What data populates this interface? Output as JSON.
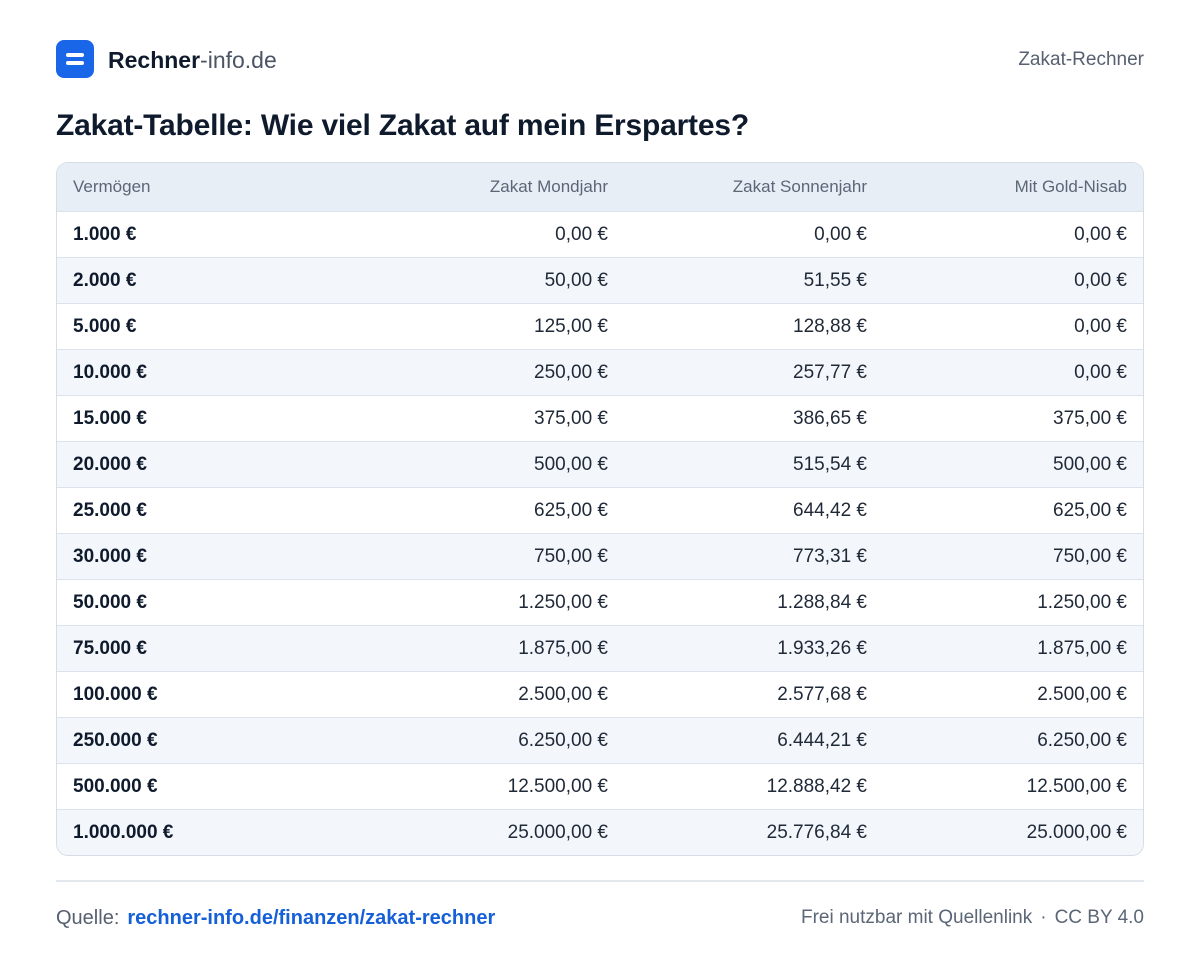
{
  "header": {
    "brand_bold": "Rechner",
    "brand_light": "-info.de",
    "nav_label": "Zakat-Rechner"
  },
  "title": "Zakat-Tabelle:  Wie viel Zakat auf mein Erspartes?",
  "table": {
    "columns": [
      "Vermögen",
      "Zakat Mondjahr",
      "Zakat Sonnenjahr",
      "Mit Gold-Nisab"
    ],
    "rows": [
      [
        "1.000 €",
        "0,00 €",
        "0,00 €",
        "0,00 €"
      ],
      [
        "2.000 €",
        "50,00 €",
        "51,55 €",
        "0,00 €"
      ],
      [
        "5.000 €",
        "125,00 €",
        "128,88 €",
        "0,00 €"
      ],
      [
        "10.000 €",
        "250,00 €",
        "257,77 €",
        "0,00 €"
      ],
      [
        "15.000 €",
        "375,00 €",
        "386,65 €",
        "375,00 €"
      ],
      [
        "20.000 €",
        "500,00 €",
        "515,54 €",
        "500,00 €"
      ],
      [
        "25.000 €",
        "625,00 €",
        "644,42 €",
        "625,00 €"
      ],
      [
        "30.000 €",
        "750,00 €",
        "773,31 €",
        "750,00 €"
      ],
      [
        "50.000 €",
        "1.250,00 €",
        "1.288,84 €",
        "1.250,00 €"
      ],
      [
        "75.000 €",
        "1.875,00 €",
        "1.933,26 €",
        "1.875,00 €"
      ],
      [
        "100.000 €",
        "2.500,00 €",
        "2.577,68 €",
        "2.500,00 €"
      ],
      [
        "250.000 €",
        "6.250,00 €",
        "6.444,21 €",
        "6.250,00 €"
      ],
      [
        "500.000 €",
        "12.500,00 €",
        "12.888,42 €",
        "12.500,00 €"
      ],
      [
        "1.000.000 €",
        "25.000,00 €",
        "25.776,84 €",
        "25.000,00 €"
      ]
    ]
  },
  "footer": {
    "source_label": "Quelle:",
    "source_link": "rechner-info.de/finanzen/zakat-rechner",
    "license_text": "Frei nutzbar mit Quellenlink",
    "separator": "·",
    "license_name": "CC BY 4.0"
  },
  "colors": {
    "brand_blue": "#1a66e8",
    "link_blue": "#1560d8",
    "header_row_bg": "#e8eef6",
    "alt_row_bg": "#f3f6fa"
  },
  "icons": {
    "logo": "two-bar-logo-icon"
  }
}
